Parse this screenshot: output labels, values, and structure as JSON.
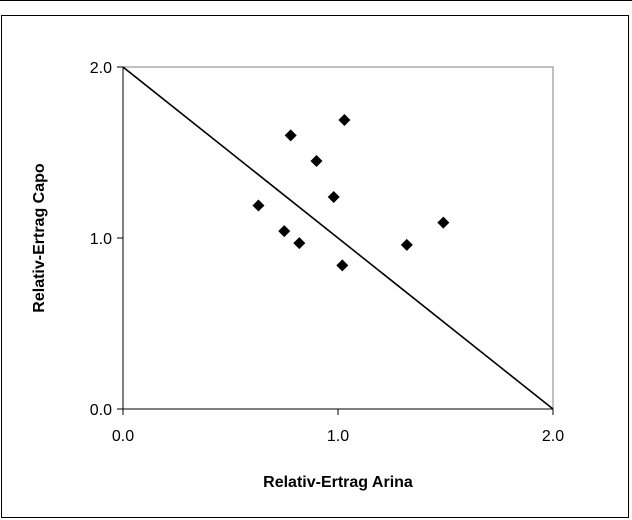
{
  "chart_data": {
    "type": "scatter",
    "title": "",
    "xlabel": "Relativ-Ertrag Arina",
    "ylabel": "Relativ-Ertrag Capo",
    "xlim": [
      0,
      2
    ],
    "ylim": [
      0,
      2
    ],
    "x_ticks": [
      "0.0",
      "1.0",
      "2.0"
    ],
    "y_ticks": [
      "0.0",
      "1.0",
      "2.0"
    ],
    "grid": false,
    "legend": "none",
    "marker": "diamond",
    "marker_color": "#000000",
    "plot_border_color": "#808080",
    "reference_line": {
      "from": [
        0,
        2
      ],
      "to": [
        2,
        0
      ]
    },
    "series": [
      {
        "points": [
          [
            0.63,
            1.19
          ],
          [
            0.75,
            1.04
          ],
          [
            0.78,
            1.6
          ],
          [
            0.82,
            0.97
          ],
          [
            0.9,
            1.45
          ],
          [
            0.98,
            1.24
          ],
          [
            1.02,
            0.84
          ],
          [
            1.03,
            1.69
          ],
          [
            1.32,
            0.96
          ],
          [
            1.49,
            1.09
          ]
        ]
      }
    ]
  }
}
